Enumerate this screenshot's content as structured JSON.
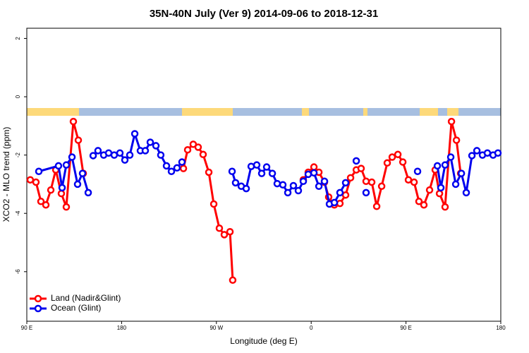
{
  "chart_data": {
    "type": "line",
    "title": "35N-40N July (Ver 9)   2014-09-06 to 2018-12-31",
    "x_label": "Longitude (deg E)",
    "y_label": "XCO2 - MLO trend (ppm)",
    "xlim": [
      90,
      540
    ],
    "xticks": [
      {
        "value": 90,
        "label": "90 E"
      },
      180,
      {
        "value": 270,
        "label": "90 W"
      },
      {
        "value": 360,
        "label": "0"
      },
      {
        "value": 450,
        "label": "90 E"
      },
      {
        "value": 540,
        "label": "180"
      }
    ],
    "ylim": [
      -7.7,
      2.35
    ],
    "yticks": [
      2,
      0,
      -2,
      -4,
      -6
    ],
    "grid": false,
    "legend": "bottom-left",
    "series": [
      {
        "name": "Land (Nadir&Glint)",
        "color": "#ff0000",
        "x": [
          93.3,
          98.7,
          103.4,
          108.1,
          112.8,
          117.5,
          122.8,
          127.5,
          134.2,
          138.9,
          143.6,
          190,
          238.7,
          242.7,
          248.0,
          252.7,
          257.4,
          262.8,
          267.5,
          272.8,
          277.5,
          282.9,
          285.5,
          320,
          352.5,
          357.2,
          362.6,
          367.3,
          372.6,
          376.6,
          382.0,
          387.3,
          392.7,
          397.4,
          402.8,
          407.4,
          412.1,
          417.5,
          422.2,
          426.9,
          432.2,
          436.9,
          442.3,
          447.0,
          452.3,
          457.7,
          462.3,
          467.0,
          472.4,
          477.7,
          481.8,
          487.1,
          493.2,
          497.9,
          501.9
        ],
        "values": [
          -2.85,
          -2.93,
          -3.59,
          -3.71,
          -3.2,
          -2.51,
          -3.32,
          -3.78,
          -0.85,
          -1.49,
          -2.63,
          null,
          -2.46,
          -1.82,
          -1.63,
          -1.73,
          -1.98,
          -2.59,
          -3.68,
          -4.51,
          -4.73,
          -4.63,
          -6.29,
          null,
          -2.85,
          -2.59,
          -2.41,
          -2.59,
          -2.93,
          -3.44,
          -3.71,
          -3.66,
          -3.37,
          -2.78,
          -2.51,
          -2.46,
          -2.9,
          -2.93,
          -3.76,
          -3.07,
          -2.27,
          -2.07,
          -1.98,
          -2.24,
          -2.85,
          -2.93,
          -3.59,
          -3.71,
          -3.2,
          -2.51,
          -3.32,
          -3.78,
          -0.85,
          -1.49,
          -2.63
        ]
      },
      {
        "name": "Ocean (Glint)",
        "color": "#0000ee",
        "x": [
          101.4,
          120.1,
          123.5,
          127.5,
          132.9,
          138.2,
          142.9,
          148.3,
          150,
          153.0,
          157.6,
          163.0,
          167.7,
          173.0,
          178.4,
          183.1,
          187.8,
          192.5,
          197.8,
          202.5,
          207.2,
          212.6,
          217.2,
          222.6,
          227.3,
          232.6,
          237.3,
          260,
          284.9,
          288.2,
          293.6,
          298.3,
          303.0,
          308.3,
          313.0,
          317.7,
          323.1,
          327.7,
          333.1,
          337.8,
          343.1,
          347.8,
          352.5,
          357.2,
          362.6,
          367.3,
          372.6,
          377.3,
          382.0,
          387.3,
          392.7,
          397,
          402.8,
          407,
          412.1,
          440,
          461,
          470,
          479.8,
          483.1,
          487.1,
          492.5,
          497.2,
          502.6,
          507.2,
          512.6,
          517.3,
          522.6,
          527.3,
          532.7,
          537.3
        ],
        "values": [
          -2.56,
          -2.37,
          -3.12,
          -2.34,
          -2.07,
          -3.0,
          -2.63,
          -3.29,
          null,
          -2.02,
          -1.85,
          -2.0,
          -1.93,
          -2.0,
          -1.93,
          -2.17,
          -2.0,
          -1.27,
          -1.85,
          -1.85,
          -1.56,
          -1.68,
          -2.0,
          -2.37,
          -2.56,
          -2.44,
          -2.24,
          null,
          -2.56,
          -2.95,
          -3.07,
          -3.15,
          -2.39,
          -2.34,
          -2.63,
          -2.41,
          -2.63,
          -2.98,
          -3.02,
          -3.29,
          -3.05,
          -3.22,
          -2.9,
          -2.66,
          -2.61,
          -3.07,
          -2.9,
          -3.68,
          -3.63,
          -3.29,
          -2.95,
          null,
          -2.2,
          null,
          -3.29,
          null,
          -2.56,
          null,
          -2.37,
          -3.12,
          -2.34,
          -2.07,
          -3.0,
          -2.63,
          -3.29,
          -2.02,
          -1.85,
          -2.0,
          -1.93,
          -2.0,
          -1.93
        ]
      }
    ]
  }
}
